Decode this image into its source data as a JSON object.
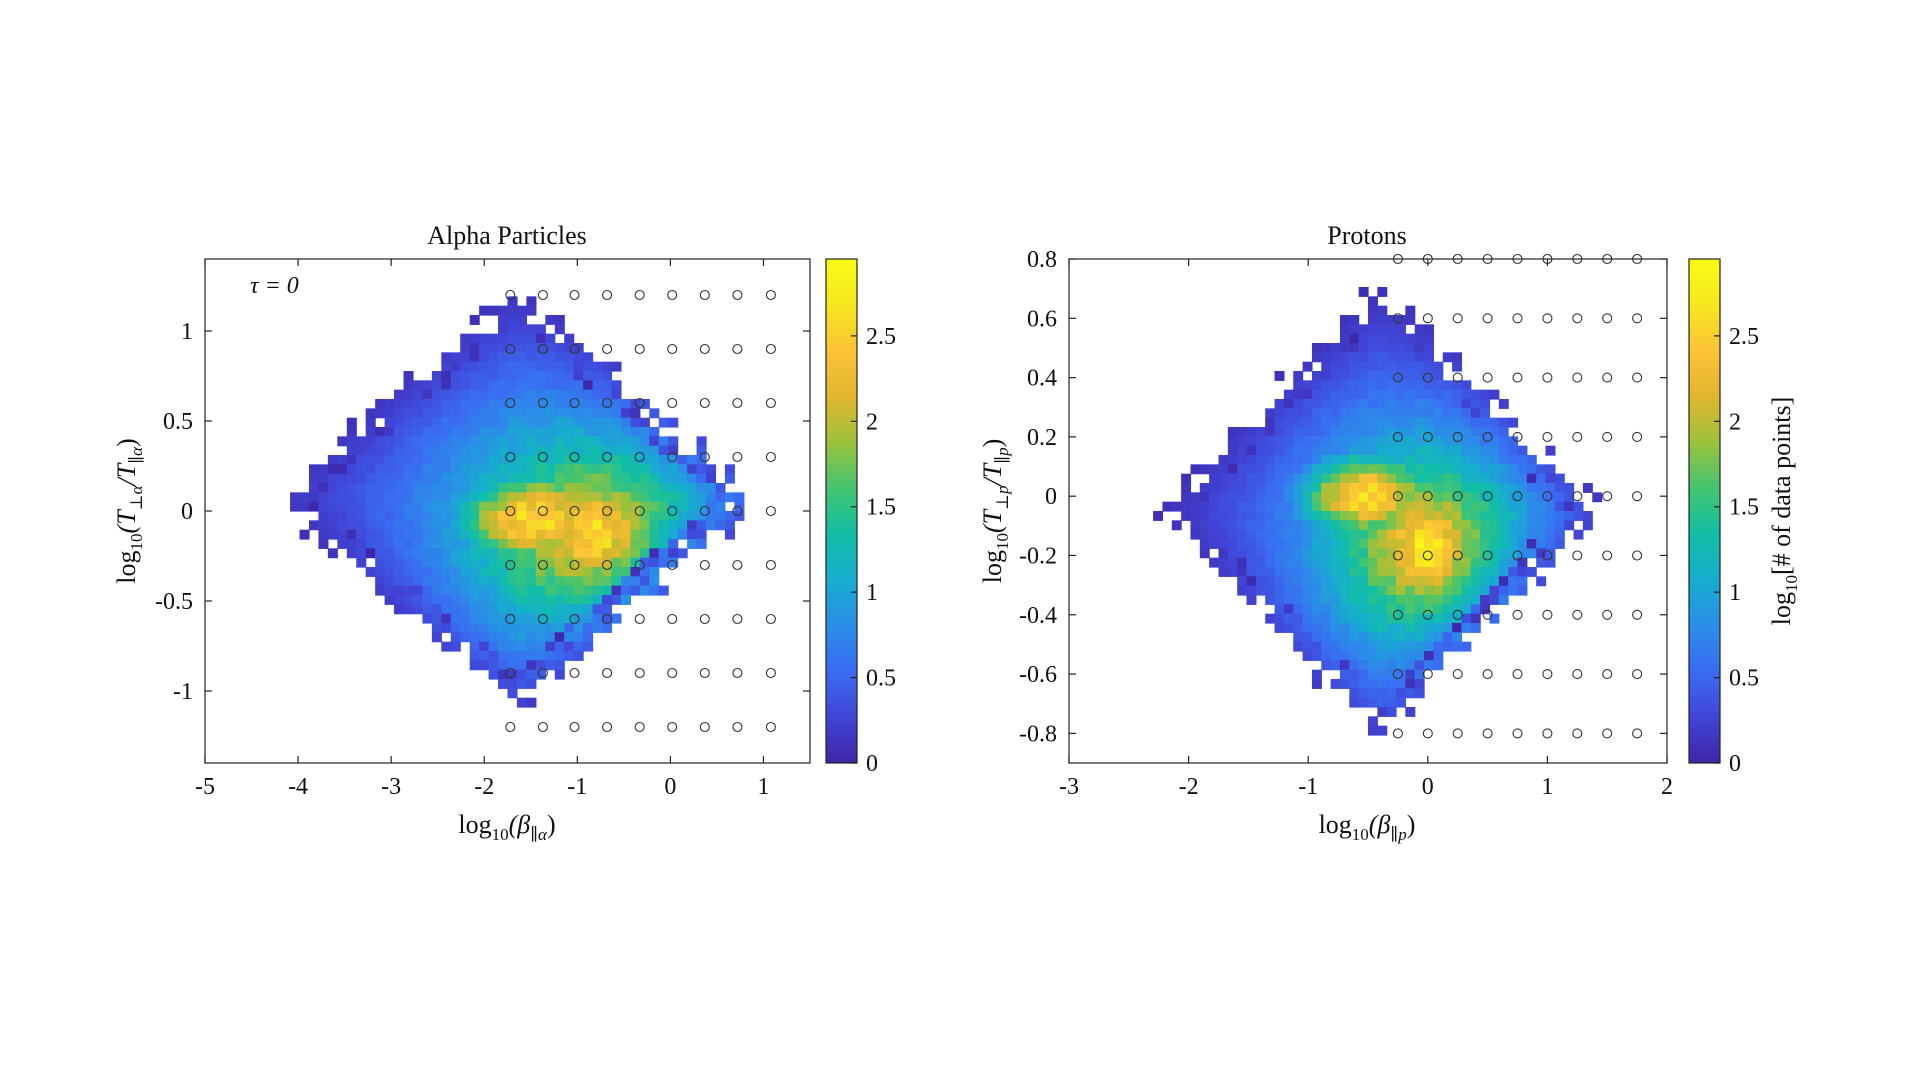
{
  "figure": {
    "colorbar_label": "log10[# of data points]",
    "colorbar_label_parts": {
      "pre": "log",
      "sub": "10",
      "post": "[# of data points]"
    },
    "colormap_stops": [
      "#3e26a8",
      "#4145d6",
      "#3a6cf2",
      "#2b8ee8",
      "#17adce",
      "#12bea6",
      "#44c470",
      "#9cc23a",
      "#e1b62e",
      "#fcc336",
      "#f6e71f",
      "#f9fb15"
    ]
  },
  "chart_data": [
    {
      "type": "heatmap",
      "title": "Alpha Particles",
      "annotation": "τ = 0",
      "xlabel": "log10(β∥α)",
      "xlabel_parts": {
        "pre": "log",
        "sub": "10",
        "mid": "(β",
        "msub": "∥α",
        "post": ")"
      },
      "ylabel": "log10(T⊥α/T∥α)",
      "ylabel_parts": {
        "pre": "log",
        "sub": "10",
        "mid": "(T",
        "msub": "⊥α",
        "mid2": "/T",
        "msub2": "∥α",
        "post": ")"
      },
      "xlim": [
        -5,
        1.5
      ],
      "ylim": [
        -1.4,
        1.4
      ],
      "xticks": [
        -5,
        -4,
        -3,
        -2,
        -1,
        0,
        1
      ],
      "xtick_labels": [
        "-5",
        "-4",
        "-3",
        "-2",
        "-1",
        "0",
        "1"
      ],
      "yticks": [
        -1,
        -0.5,
        0,
        0.5,
        1
      ],
      "ytick_labels": [
        "-1",
        "-0.5",
        "0",
        "0.5",
        "1"
      ],
      "colorbar": {
        "range": [
          0,
          2.95
        ],
        "ticks": [
          0,
          0.5,
          1,
          1.5,
          2,
          2.5
        ],
        "tick_labels": [
          "0",
          "0.5",
          "1",
          "1.5",
          "2",
          "2.5"
        ]
      },
      "density_model": {
        "peak": [
          -0.8,
          -0.15
        ],
        "peak_value": 2.9,
        "decay": 0.6,
        "extent": {
          "x": [
            -4.2,
            0.9
          ],
          "y": [
            -1.05,
            1.2
          ]
        },
        "lobes": [
          {
            "x": -1.45,
            "y": -0.05,
            "rx": 0.9,
            "ry": 0.28,
            "value": 2.6
          }
        ]
      },
      "marker_grid": {
        "x": [
          -1.72,
          -1.37,
          -1.03,
          -0.68,
          -0.33,
          0.02,
          0.37,
          0.72,
          1.08
        ],
        "y": [
          1.2,
          0.9,
          0.6,
          0.3,
          0.0,
          -0.3,
          -0.6,
          -0.9,
          -1.2
        ]
      }
    },
    {
      "type": "heatmap",
      "title": "Protons",
      "xlabel": "log10(β∥p)",
      "xlabel_parts": {
        "pre": "log",
        "sub": "10",
        "mid": "(β",
        "msub": "∥p",
        "post": ")"
      },
      "ylabel": "log10(T⊥p/T∥p)",
      "ylabel_parts": {
        "pre": "log",
        "sub": "10",
        "mid": "(T",
        "msub": "⊥p",
        "mid2": "/T",
        "msub2": "∥p",
        "post": ")"
      },
      "xlim": [
        -3,
        2
      ],
      "ylim": [
        -0.9,
        0.8
      ],
      "xticks": [
        -3,
        -2,
        -1,
        0,
        1,
        2
      ],
      "xtick_labels": [
        "-3",
        "-2",
        "-1",
        "0",
        "1",
        "2"
      ],
      "yticks": [
        -0.8,
        -0.6,
        -0.4,
        -0.2,
        0,
        0.2,
        0.4,
        0.6,
        0.8
      ],
      "ytick_labels": [
        "-0.8",
        "-0.6",
        "-0.4",
        "-0.2",
        "0",
        "0.2",
        "0.4",
        "0.6",
        "0.8"
      ],
      "colorbar": {
        "range": [
          0,
          2.95
        ],
        "ticks": [
          0,
          0.5,
          1,
          1.5,
          2,
          2.5
        ],
        "tick_labels": [
          "0",
          "0.5",
          "1",
          "1.5",
          "2",
          "2.5"
        ]
      },
      "density_model": {
        "peak": [
          0.0,
          -0.18
        ],
        "peak_value": 2.95,
        "decay": 0.52,
        "extent": {
          "x": [
            -2.2,
            1.4
          ],
          "y": [
            -0.8,
            0.7
          ]
        },
        "lobes": [
          {
            "x": -0.5,
            "y": 0.0,
            "rx": 0.6,
            "ry": 0.15,
            "value": 2.6
          }
        ]
      },
      "marker_grid": {
        "x": [
          -0.25,
          0.0,
          0.25,
          0.5,
          0.75,
          1.0,
          1.25,
          1.5,
          1.75
        ],
        "y": [
          0.8,
          0.6,
          0.4,
          0.2,
          0.0,
          -0.2,
          -0.4,
          -0.6,
          -0.8
        ]
      }
    }
  ]
}
